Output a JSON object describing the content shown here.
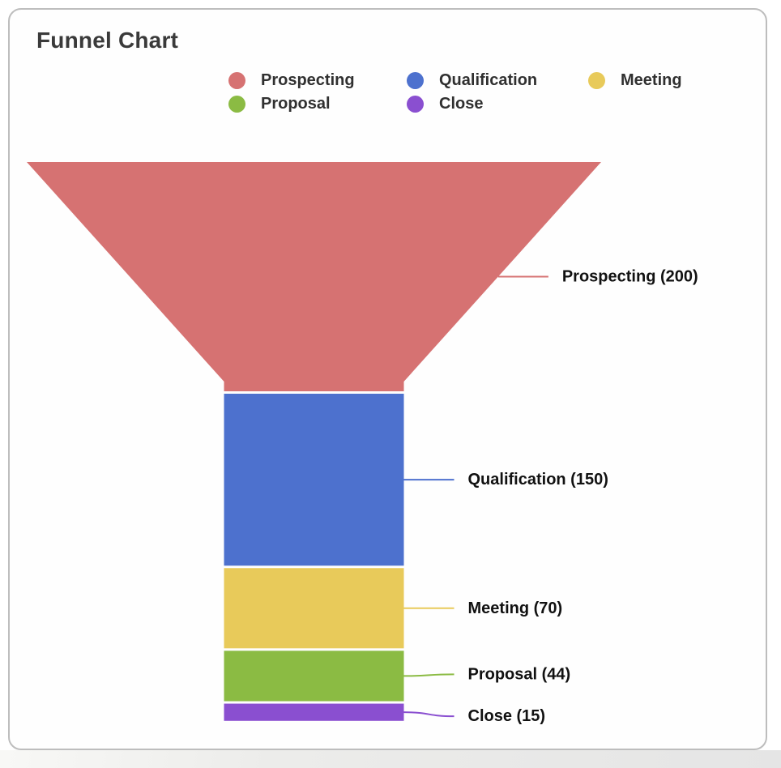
{
  "card": {
    "title": "Funnel Chart"
  },
  "legend": {
    "items": [
      {
        "label": "Prospecting",
        "color": "#D67272"
      },
      {
        "label": "Qualification",
        "color": "#4D71CE"
      },
      {
        "label": "Meeting",
        "color": "#E8CA5A"
      },
      {
        "label": "Proposal",
        "color": "#8BBB43"
      },
      {
        "label": "Close",
        "color": "#8A4FD0"
      }
    ]
  },
  "chart_data": {
    "type": "funnel",
    "title": "Funnel Chart",
    "legend_position": "top",
    "annotation_color": "#111111",
    "stages": [
      {
        "label": "Prospecting",
        "value": 200,
        "color": "#D67272",
        "annotation": "Prospecting (200)"
      },
      {
        "label": "Qualification",
        "value": 150,
        "color": "#4D71CE",
        "annotation": "Qualification (150)"
      },
      {
        "label": "Meeting",
        "value": 70,
        "color": "#E8CA5A",
        "annotation": "Meeting (70)"
      },
      {
        "label": "Proposal",
        "value": 44,
        "color": "#8BBB43",
        "annotation": "Proposal (44)"
      },
      {
        "label": "Close",
        "value": 15,
        "color": "#8A4FD0",
        "annotation": "Close (15)"
      }
    ]
  }
}
